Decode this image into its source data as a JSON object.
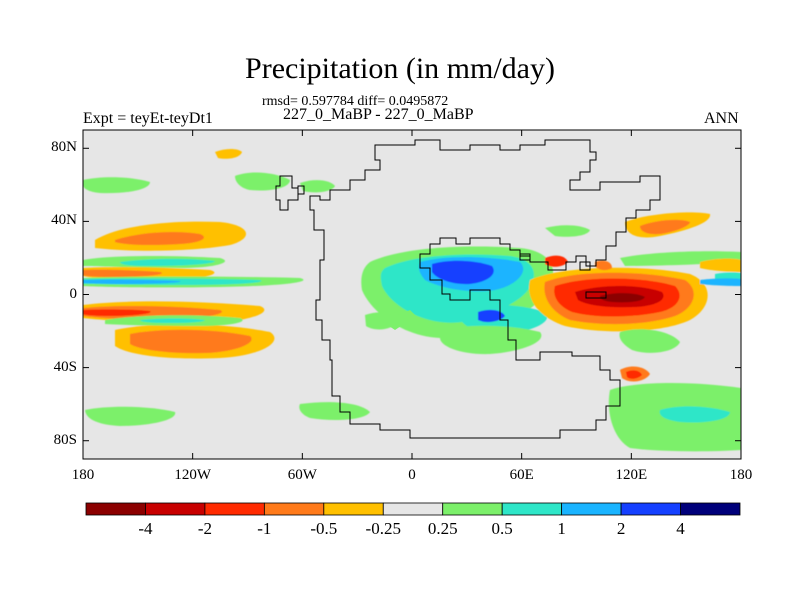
{
  "header": {
    "title": "Precipitation (in mm/day)",
    "stats": "rmsd= 0.597784 diff= 0.0495872",
    "subtitle": "227_0_MaBP - 227_0_MaBP",
    "left_label": "Expt = teyEt-teyDt1",
    "right_label": "ANN"
  },
  "axes": {
    "y_ticks": [
      {
        "value": 80,
        "label": "80N"
      },
      {
        "value": 40,
        "label": "40N"
      },
      {
        "value": 0,
        "label": "0"
      },
      {
        "value": -40,
        "label": "40S"
      },
      {
        "value": -80,
        "label": "80S"
      }
    ],
    "x_ticks": [
      {
        "value": -180,
        "label": "180"
      },
      {
        "value": -120,
        "label": "120W"
      },
      {
        "value": -60,
        "label": "60W"
      },
      {
        "value": 0,
        "label": "0"
      },
      {
        "value": 60,
        "label": "60E"
      },
      {
        "value": 120,
        "label": "120E"
      },
      {
        "value": 180,
        "label": "180"
      }
    ],
    "lon_range": [
      -180,
      180
    ],
    "lat_range": [
      -90,
      90
    ]
  },
  "colorbar": {
    "colors": [
      "#8b0000",
      "#c80000",
      "#ff2a00",
      "#ff7a1a",
      "#ffc000",
      "#e6e6e6",
      "#7cf06a",
      "#2ee6c8",
      "#1ab4ff",
      "#1540ff",
      "#00007a"
    ],
    "labels": [
      "-4",
      "-2",
      "-1",
      "-0.5",
      "-0.25",
      "0.25",
      "0.5",
      "1",
      "2",
      "4"
    ]
  },
  "colors": {
    "background": "#e6e6e6",
    "coastline": "#000000"
  }
}
